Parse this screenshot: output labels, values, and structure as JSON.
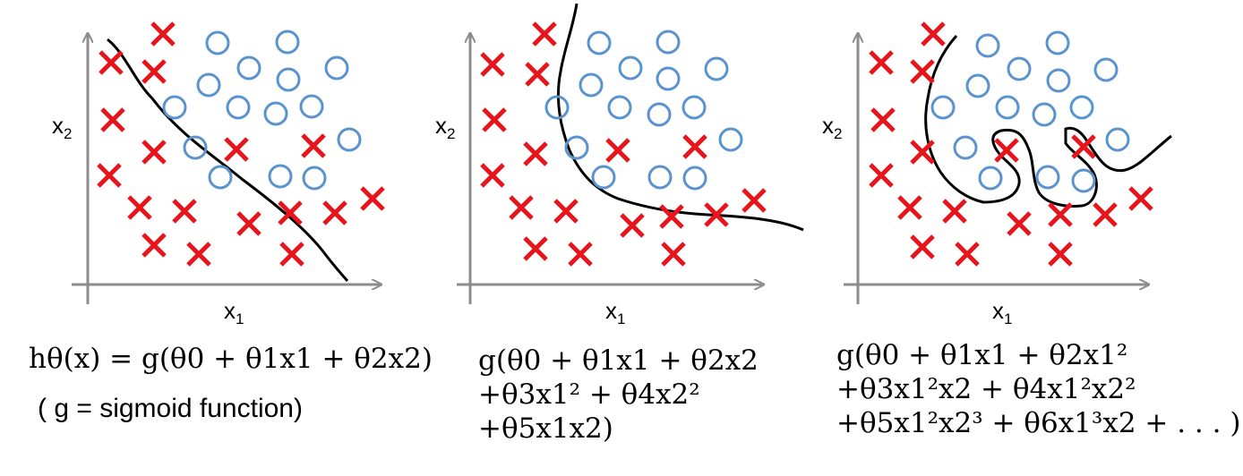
{
  "header_fragment": "...",
  "panels": [
    {
      "x_label": "x",
      "x_sub": "1",
      "y_label": "x",
      "y_sub": "2",
      "formula_lines": [
        "hθ(x) = g(θ0 + θ1x1 + θ2x2)"
      ],
      "note": "( g = sigmoid function)"
    },
    {
      "x_label": "x",
      "x_sub": "1",
      "y_label": "x",
      "y_sub": "2",
      "formula_lines": [
        "g(θ0 + θ1x1 + θ2x2",
        "+θ3x1² + θ4x2²",
        "+θ5x1x2)"
      ]
    },
    {
      "x_label": "x",
      "x_sub": "1",
      "y_label": "x",
      "y_sub": "2",
      "formula_lines": [
        "g(θ0 + θ1x1 + θ2x1²",
        "+θ3x1²x2 + θ4x1²x2²",
        "+θ5x1²x2³ + θ6x1³x2 + . . . )"
      ]
    }
  ],
  "colors": {
    "cross": "#e8141b",
    "circle": "#5b93cf",
    "axis": "#8c8c8c",
    "boundary": "#000000"
  }
}
